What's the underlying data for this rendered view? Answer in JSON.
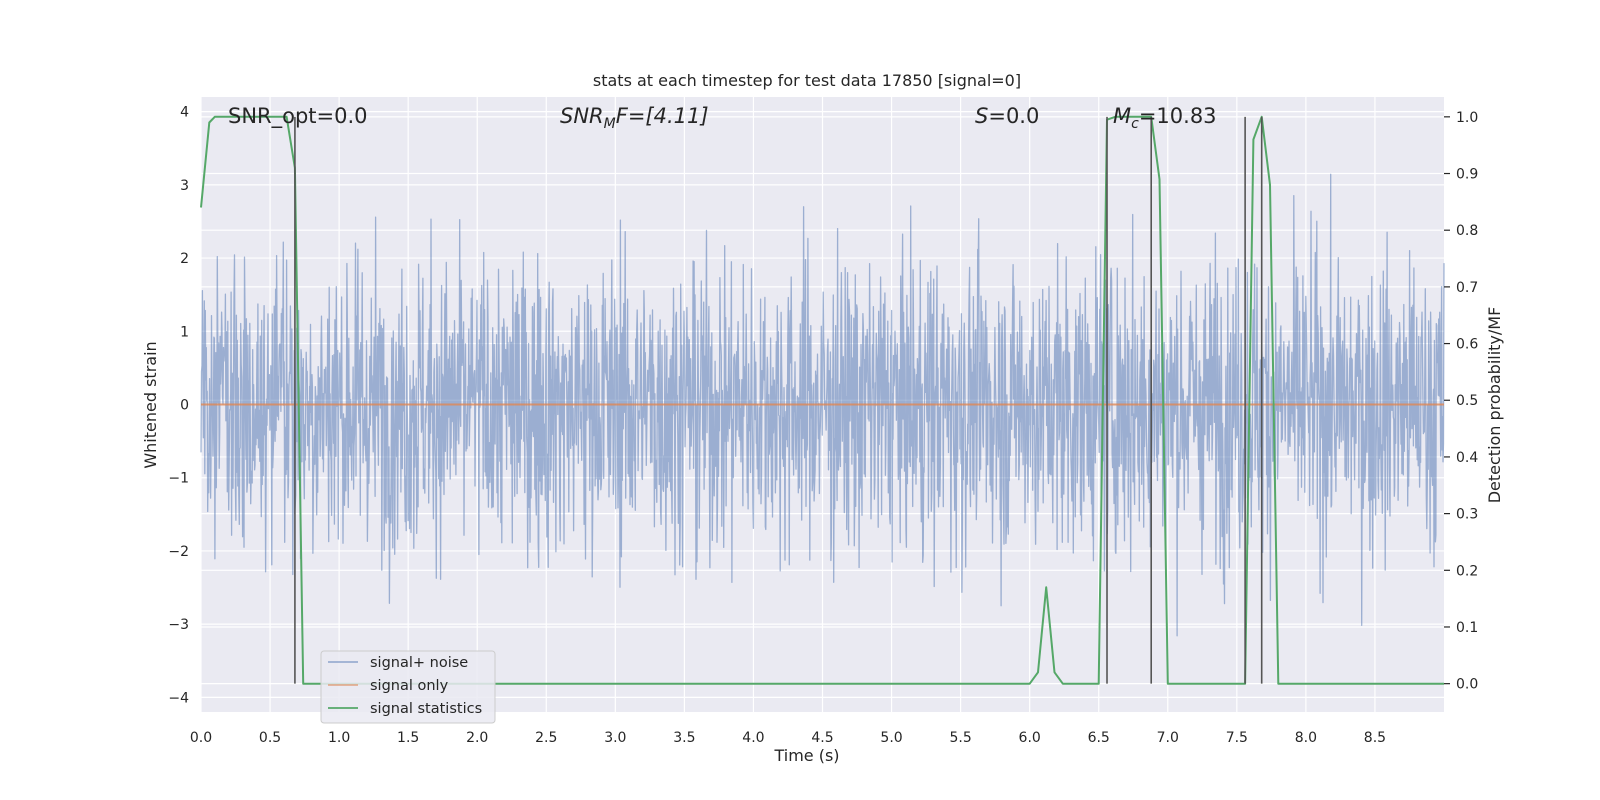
{
  "chart_data": {
    "type": "line",
    "title": "stats at each timestep for test data 17850 [signal=0]",
    "xlabel": "Time (s)",
    "ylabel": "Whitened strain",
    "y2label": "Detection probability/MF",
    "xlim": [
      0.0,
      9.0
    ],
    "ylim": [
      -4.2,
      4.2
    ],
    "y2lim": [
      -0.05,
      1.035
    ],
    "xticks": [
      0.0,
      0.5,
      1.0,
      1.5,
      2.0,
      2.5,
      3.0,
      3.5,
      4.0,
      4.5,
      5.0,
      5.5,
      6.0,
      6.5,
      7.0,
      7.5,
      8.0,
      8.5
    ],
    "xtick_labels": [
      "0.0",
      "0.5",
      "1.0",
      "1.5",
      "2.0",
      "2.5",
      "3.0",
      "3.5",
      "4.0",
      "4.5",
      "5.0",
      "5.5",
      "6.0",
      "6.5",
      "7.0",
      "7.5",
      "8.0",
      "8.5"
    ],
    "yticks": [
      -4,
      -3,
      -2,
      -1,
      0,
      1,
      2,
      3,
      4
    ],
    "ytick_labels": [
      "−4",
      "−3",
      "−2",
      "−1",
      "0",
      "1",
      "2",
      "3",
      "4"
    ],
    "y2ticks": [
      0.0,
      0.1,
      0.2,
      0.3,
      0.4,
      0.5,
      0.6,
      0.7,
      0.8,
      0.9,
      1.0
    ],
    "y2tick_labels": [
      "0.0",
      "0.1",
      "0.2",
      "0.3",
      "0.4",
      "0.5",
      "0.6",
      "0.7",
      "0.8",
      "0.9",
      "1.0"
    ],
    "grid": true,
    "legend_placement": "lower-left",
    "annotations": {
      "snr_opt": "SNR_opt=0.0",
      "snr_mf_main": "SNR",
      "snr_mf_sub": "M",
      "snr_mf_rest": "F=[4.11]",
      "s_main": "S",
      "s_rest": "=0.0",
      "mc_main": "M",
      "mc_sub": "c",
      "mc_rest": "=10.83"
    },
    "series": [
      {
        "name": "signal+ noise",
        "color": "#4c72b0",
        "kind": "noise",
        "approx_std": 1.0,
        "approx_range": [
          -3.8,
          3.9
        ]
      },
      {
        "name": "signal only",
        "color": "#dd8452",
        "x": [
          0.0,
          9.0
        ],
        "y": [
          0.0,
          0.0
        ]
      },
      {
        "name": "signal statistics",
        "color": "#55a868",
        "axis": "right",
        "x": [
          0.0,
          0.06,
          0.1,
          0.62,
          0.68,
          0.74,
          6.0,
          6.06,
          6.12,
          6.18,
          6.24,
          6.5,
          6.56,
          6.62,
          6.68,
          6.88,
          6.94,
          7.0,
          7.56,
          7.62,
          7.68,
          7.74,
          7.8,
          7.86,
          9.0
        ],
        "y": [
          0.84,
          0.99,
          1.0,
          1.0,
          0.91,
          0.0,
          0.0,
          0.02,
          0.17,
          0.02,
          0.0,
          0.0,
          0.995,
          1.0,
          1.0,
          1.0,
          0.89,
          0.0,
          0.0,
          0.96,
          1.0,
          0.88,
          0.0,
          0.0,
          0.0
        ]
      }
    ],
    "markers": {
      "color": "#555555",
      "x": [
        0.68,
        6.56,
        6.88,
        7.56,
        7.68
      ]
    }
  }
}
